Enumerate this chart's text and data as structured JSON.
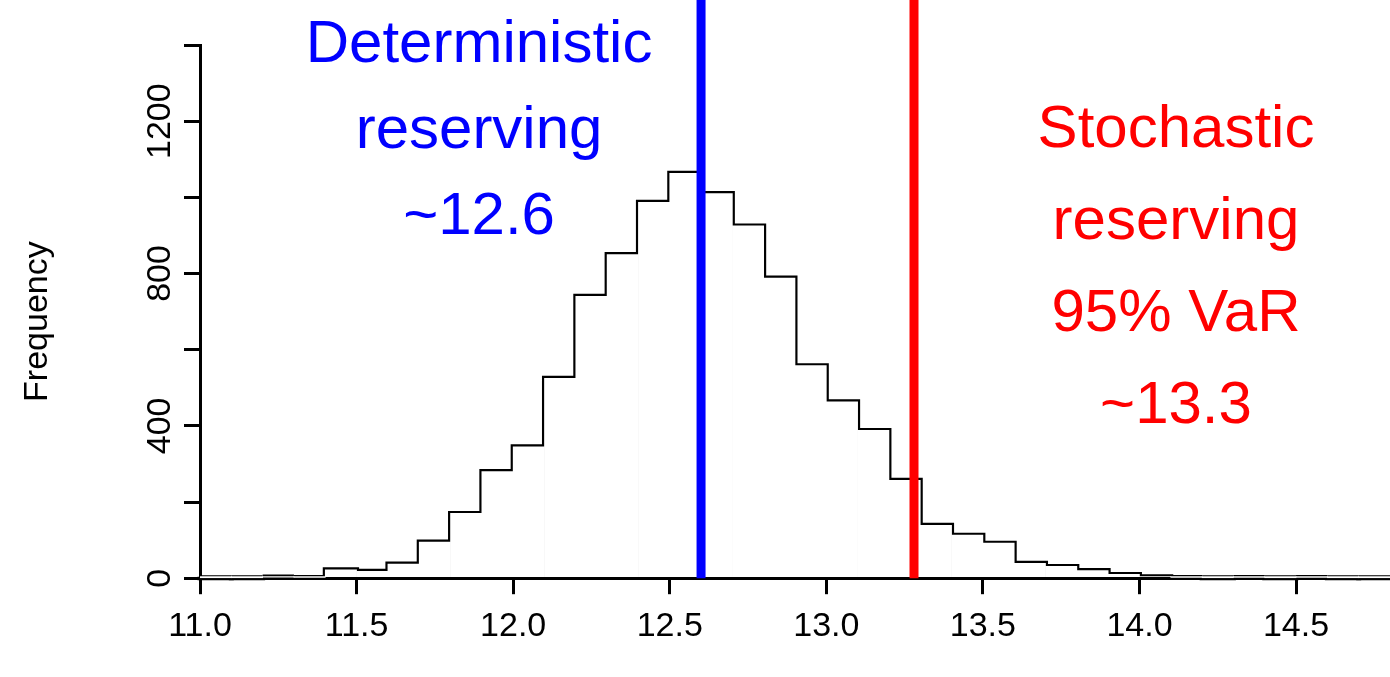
{
  "chart_data": {
    "type": "histogram",
    "ylabel": "Frequency",
    "bins": [
      11.0,
      11.1,
      11.2,
      11.3,
      11.4,
      11.5,
      11.6,
      11.7,
      11.8,
      11.9,
      12.0,
      12.1,
      12.2,
      12.3,
      12.4,
      12.5,
      12.6,
      12.7,
      12.8,
      12.9,
      13.0,
      13.1,
      13.2,
      13.3,
      13.4,
      13.5,
      13.6,
      13.7,
      13.8,
      13.9,
      14.0,
      14.1,
      14.2,
      14.3,
      14.4,
      14.5,
      14.6,
      14.7,
      14.8
    ],
    "values": [
      1,
      1,
      3,
      2,
      22,
      18,
      37,
      95,
      170,
      280,
      345,
      525,
      740,
      850,
      987,
      1063,
      1010,
      925,
      788,
      558,
      463,
      388,
      257,
      139,
      113,
      92,
      39,
      31,
      20,
      10,
      4,
      2,
      1,
      2,
      1,
      2,
      1,
      1
    ],
    "color": "#ffffff",
    "xlim": [
      11.0,
      14.8
    ],
    "xticks": [
      {
        "value": 11,
        "label": "11.0"
      },
      {
        "value": 11.5,
        "label": "11.5"
      },
      {
        "value": 12,
        "label": "12.0"
      },
      {
        "value": 12.5,
        "label": "12.5"
      },
      {
        "value": 13,
        "label": "13.0"
      },
      {
        "value": 13.5,
        "label": "13.5"
      },
      {
        "value": 14,
        "label": "14.0"
      },
      {
        "value": 14.5,
        "label": "14.5"
      }
    ],
    "ylim": [
      0,
      1400
    ],
    "yticks": [
      0,
      {
        "value": 200,
        "label": null
      },
      400,
      {
        "value": 600,
        "label": null
      },
      800,
      {
        "value": 1000,
        "label": null
      },
      1200,
      {
        "value": 1400,
        "label": null
      }
    ],
    "ref_lines": [
      {
        "axis": "x",
        "value": 12.6,
        "label": "Deterministic\nreserving\n~12.6",
        "color": "#0000ff"
      },
      {
        "axis": "x",
        "value": 13.28,
        "label": "Stochastic\nreserving\n95% VaR\n~13.3",
        "color": "#ff0000"
      }
    ]
  }
}
